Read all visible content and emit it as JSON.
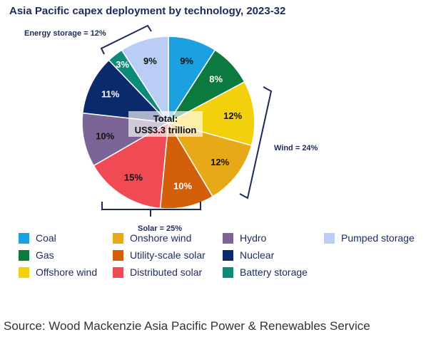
{
  "chart_data": {
    "type": "pie",
    "title": "Asia Pacific capex deployment by technology, 2023-32",
    "center_label": [
      "Total:",
      "US$3.3 trillion"
    ],
    "slices": [
      {
        "name": "Coal",
        "value": 9,
        "label": "9%",
        "color": "#1ba1e0"
      },
      {
        "name": "Gas",
        "value": 8,
        "label": "8%",
        "color": "#0c7a3e"
      },
      {
        "name": "Offshore wind",
        "value": 12,
        "label": "12%",
        "color": "#f2d00c"
      },
      {
        "name": "Onshore wind",
        "value": 12,
        "label": "12%",
        "color": "#e8a918"
      },
      {
        "name": "Utility-scale solar",
        "value": 10,
        "label": "10%",
        "color": "#d35f0a"
      },
      {
        "name": "Distributed solar",
        "value": 15,
        "label": "15%",
        "color": "#f04b55"
      },
      {
        "name": "Hydro",
        "value": 10,
        "label": "10%",
        "color": "#7a6596"
      },
      {
        "name": "Nuclear",
        "value": 11,
        "label": "11%",
        "color": "#0b2a6e"
      },
      {
        "name": "Battery storage",
        "value": 3,
        "label": "3%",
        "color": "#0e8a7a"
      },
      {
        "name": "Pumped storage",
        "value": 9,
        "label": "9%",
        "color": "#b9cdf5"
      }
    ],
    "groups": [
      {
        "name": "Energy storage",
        "label": "Energy storage = 12%"
      },
      {
        "name": "Wind",
        "label": "Wind = 24%"
      },
      {
        "name": "Solar",
        "label": "Solar = 25%"
      }
    ],
    "legend": [
      [
        "Coal",
        "Onshore wind",
        "Hydro",
        "Pumped storage"
      ],
      [
        "Gas",
        "Utility-scale solar",
        "Nuclear"
      ],
      [
        "Offshore wind",
        "Distributed solar",
        "Battery storage"
      ]
    ]
  },
  "source": "Source: Wood Mackenzie Asia Pacific Power & Renewables Service"
}
